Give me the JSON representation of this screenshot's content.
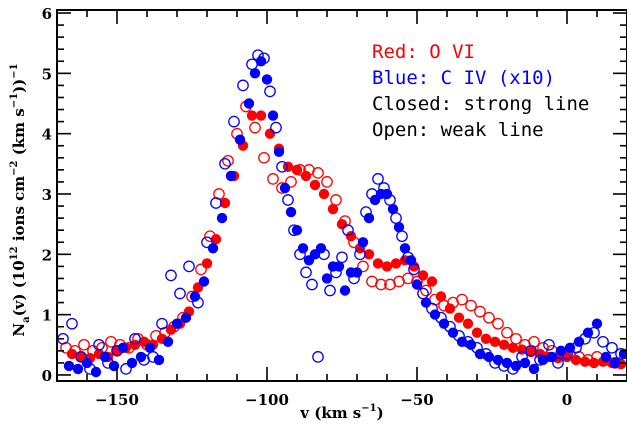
{
  "chart_data": {
    "type": "scatter",
    "xlabel_main": "v (km s",
    "xlabel_sup": "−1",
    "xlabel_end": ")",
    "ylabel_parts": {
      "n": "N",
      "a": "a",
      "mid": "(v) (10",
      "sup12": "12",
      "ions": " ions cm",
      "supm2": "−2",
      "kms": " (km s",
      "supm1": "−1",
      "close": "))",
      "supm1b": "−1"
    },
    "xlim": [
      -170,
      20
    ],
    "ylim": [
      -0.1,
      6.05
    ],
    "x_ticks": [
      -150,
      -100,
      -50,
      0
    ],
    "x_tick_labels": [
      "−150",
      "−100",
      "−50",
      "0"
    ],
    "y_ticks": [
      0,
      1,
      2,
      3,
      4,
      5,
      6
    ],
    "y_tick_labels": [
      "0",
      "1",
      "2",
      "3",
      "4",
      "5",
      "6"
    ],
    "legend_lines": [
      {
        "text": "Red: O VI",
        "color": "#ff0000"
      },
      {
        "text": "Blue: C IV (x10)",
        "color": "#0000ff"
      },
      {
        "text": "Closed: strong line",
        "color": "#000000"
      },
      {
        "text": "Open: weak line",
        "color": "#000000"
      }
    ],
    "series": [
      {
        "name": "O VI strong",
        "color": "#ff0000",
        "filled": true,
        "x": [
          -165,
          -162,
          -159,
          -156,
          -153,
          -150,
          -147,
          -144,
          -141,
          -138,
          -135,
          -132,
          -129,
          -126,
          -123,
          -120,
          -117,
          -114,
          -111,
          -108,
          -105,
          -102,
          -99,
          -96,
          -93,
          -90,
          -87,
          -84,
          -81,
          -78,
          -75,
          -72,
          -69,
          -66,
          -63,
          -60,
          -57,
          -54,
          -51,
          -48,
          -45,
          -42,
          -39,
          -36,
          -33,
          -30,
          -27,
          -24,
          -21,
          -18,
          -15,
          -12,
          -9,
          -6,
          -3,
          0,
          3,
          6,
          9,
          12,
          15,
          18
        ],
        "y": [
          0.35,
          0.3,
          0.28,
          0.35,
          0.3,
          0.4,
          0.45,
          0.5,
          0.55,
          0.5,
          0.6,
          0.75,
          0.85,
          1.05,
          1.45,
          1.85,
          2.25,
          2.85,
          3.3,
          3.8,
          4.3,
          4.3,
          4.0,
          3.75,
          3.45,
          3.4,
          3.3,
          3.15,
          3.0,
          2.75,
          2.5,
          2.3,
          2.1,
          2.0,
          1.85,
          1.8,
          1.85,
          1.9,
          1.8,
          1.65,
          1.55,
          1.3,
          1.1,
          0.95,
          0.85,
          0.7,
          0.6,
          0.55,
          0.5,
          0.45,
          0.42,
          0.38,
          0.35,
          0.3,
          0.28,
          0.3,
          0.25,
          0.22,
          0.2,
          0.22,
          0.2,
          0.18
        ]
      },
      {
        "name": "O VI weak",
        "color": "#ff0000",
        "filled": false,
        "x": [
          -167,
          -164,
          -161,
          -158,
          -155,
          -152,
          -149,
          -146,
          -143,
          -140,
          -137,
          -134,
          -131,
          -128,
          -125,
          -122,
          -119,
          -116,
          -113,
          -110,
          -107,
          -104,
          -101,
          -98,
          -95,
          -92,
          -89,
          -86,
          -83,
          -80,
          -77,
          -74,
          -71,
          -68,
          -65,
          -62,
          -59,
          -56,
          -53,
          -50,
          -47,
          -44,
          -41,
          -38,
          -35,
          -32,
          -29,
          -26,
          -23,
          -20,
          -17,
          -14,
          -11,
          -8,
          -5,
          -2,
          1,
          4,
          7,
          10,
          13,
          16,
          19
        ],
        "y": [
          0.45,
          0.4,
          0.5,
          0.4,
          0.45,
          0.55,
          0.5,
          0.45,
          0.6,
          0.5,
          0.65,
          0.7,
          0.8,
          0.95,
          1.3,
          1.75,
          2.3,
          3.0,
          3.55,
          4.0,
          4.45,
          4.1,
          3.6,
          3.25,
          3.1,
          3.2,
          3.4,
          3.4,
          3.35,
          3.2,
          2.9,
          2.55,
          2.2,
          1.8,
          1.55,
          1.5,
          1.5,
          1.55,
          1.6,
          1.55,
          1.4,
          1.25,
          1.15,
          1.2,
          1.25,
          1.15,
          1.05,
          0.95,
          0.85,
          0.7,
          0.6,
          0.5,
          0.55,
          0.45,
          0.4,
          0.35,
          0.35,
          0.3,
          0.25,
          0.3,
          0.25,
          0.2,
          0.25
        ]
      },
      {
        "name": "C IV strong",
        "color": "#0000ff",
        "filled": true,
        "x": [
          -166,
          -163,
          -160,
          -157,
          -154,
          -151,
          -148,
          -145,
          -142,
          -139,
          -136,
          -133,
          -130,
          -127,
          -124,
          -121,
          -118,
          -115,
          -112,
          -109,
          -106,
          -104,
          -102,
          -100,
          -98,
          -96,
          -94,
          -92,
          -90,
          -88,
          -86,
          -84,
          -82,
          -80,
          -78,
          -76,
          -74,
          -72,
          -70,
          -68,
          -66,
          -64,
          -62,
          -60,
          -58,
          -56,
          -54,
          -52,
          -50,
          -47,
          -44,
          -41,
          -38,
          -35,
          -32,
          -29,
          -26,
          -23,
          -20,
          -17,
          -14,
          -11,
          -8,
          -5,
          -2,
          1,
          4,
          7,
          10,
          13,
          16,
          19
        ],
        "y": [
          0.15,
          0.1,
          0.2,
          0.05,
          0.3,
          0.15,
          0.45,
          0.2,
          0.3,
          0.45,
          0.25,
          0.55,
          0.85,
          0.95,
          1.3,
          1.55,
          2.1,
          2.6,
          3.3,
          3.9,
          4.5,
          5.0,
          5.2,
          4.9,
          4.3,
          3.7,
          3.1,
          2.7,
          2.4,
          2.1,
          1.9,
          2.0,
          2.1,
          1.6,
          1.8,
          1.8,
          1.4,
          1.7,
          1.7,
          2.2,
          2.6,
          2.9,
          3.0,
          3.0,
          2.75,
          2.45,
          2.1,
          1.9,
          1.5,
          1.2,
          1.0,
          0.85,
          0.7,
          0.55,
          0.5,
          0.35,
          0.3,
          0.25,
          0.2,
          0.15,
          0.2,
          0.1,
          0.25,
          0.3,
          0.4,
          0.45,
          0.55,
          0.7,
          0.85,
          0.3,
          0.2,
          0.35
        ]
      },
      {
        "name": "C IV weak",
        "color": "#0000ff",
        "filled": false,
        "x": [
          -168,
          -165,
          -162,
          -159,
          -156,
          -153,
          -150,
          -147,
          -144,
          -141,
          -138,
          -135,
          -132,
          -129,
          -126,
          -123,
          -120,
          -117,
          -114,
          -111,
          -108,
          -105,
          -103,
          -101,
          -99,
          -97,
          -95,
          -93,
          -91,
          -89,
          -87,
          -85,
          -83,
          -81,
          -79,
          -77,
          -75,
          -73,
          -71,
          -69,
          -67,
          -65,
          -63,
          -61,
          -59,
          -57,
          -55,
          -53,
          -51,
          -48,
          -45,
          -42,
          -39,
          -36,
          -33,
          -30,
          -27,
          -24,
          -21,
          -18,
          -15,
          -12,
          -9,
          -6,
          -3,
          0,
          3,
          6,
          9,
          12,
          15,
          18
        ],
        "y": [
          0.6,
          0.85,
          0.3,
          0.1,
          0.5,
          0.2,
          0.4,
          0.1,
          0.6,
          0.25,
          0.3,
          0.85,
          1.65,
          1.35,
          1.8,
          1.2,
          2.2,
          2.85,
          3.5,
          4.2,
          4.8,
          5.15,
          5.3,
          5.25,
          4.7,
          4.1,
          3.45,
          2.9,
          2.4,
          2.0,
          1.7,
          1.5,
          0.3,
          2.0,
          1.4,
          1.7,
          1.95,
          2.4,
          1.6,
          2.0,
          2.7,
          3.0,
          3.25,
          3.1,
          2.9,
          2.6,
          2.3,
          1.95,
          1.75,
          1.35,
          1.1,
          0.95,
          0.8,
          0.65,
          0.55,
          0.45,
          0.35,
          0.2,
          0.15,
          0.1,
          0.3,
          0.4,
          0.25,
          0.5,
          0.2,
          0.35,
          0.45,
          0.6,
          0.7,
          0.55,
          0.45,
          0.35
        ]
      }
    ]
  }
}
